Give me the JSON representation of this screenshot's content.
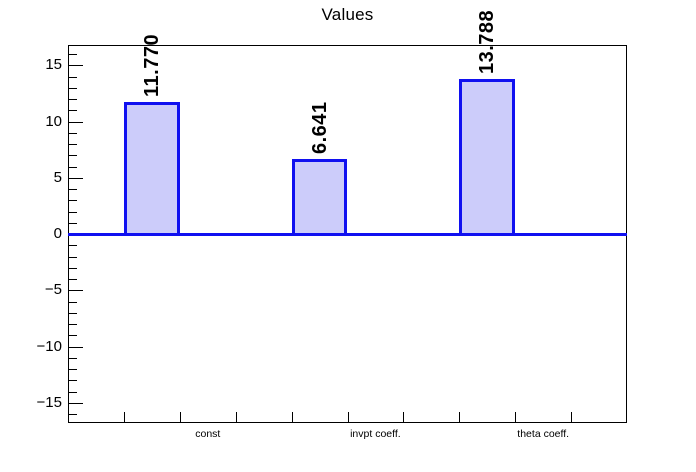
{
  "title": "Values",
  "colors": {
    "background": "#ffffff",
    "bar_fill": "#ccccfa",
    "bar_border": "#1010f0",
    "zero_line": "#1010f0",
    "frame": "#000000",
    "text": "#000000"
  },
  "chart_data": {
    "type": "bar",
    "title": "Values",
    "categories": [
      "const",
      "invpt coeff.",
      "theta coeff."
    ],
    "values": [
      11.77,
      6.641,
      13.788
    ],
    "value_labels": [
      "11.770",
      "6.641",
      "13.788"
    ],
    "xlabel": "",
    "ylabel": "",
    "ylim": [
      -16.8,
      16.8
    ],
    "ytick_major_values": [
      15,
      10,
      5,
      0,
      -5,
      -10,
      -15
    ],
    "ytick_major_labels": [
      "15",
      "10",
      "5",
      "0",
      "−5",
      "−10",
      "−15"
    ],
    "ytick_minor_step": 1,
    "n_bins": 10,
    "bar_bins": [
      2,
      5,
      8
    ],
    "category_label_bins": [
      3,
      6,
      9
    ],
    "grid": false,
    "legend": "none",
    "zero_line": true,
    "bar_style": "outlined-filled",
    "value_label_rotation_deg": 90
  }
}
